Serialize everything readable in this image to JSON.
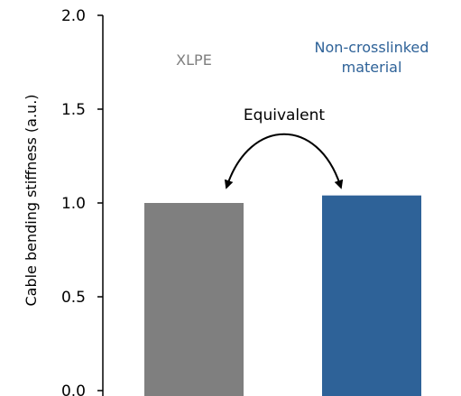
{
  "chart_data": {
    "type": "bar",
    "ylabel": "Cable bending stiffness (a.u.)",
    "ylim": [
      0,
      2
    ],
    "yticks": [
      "0.0",
      "0.5",
      "1.0",
      "1.5",
      "2.0"
    ],
    "grid": false,
    "categories": [
      "XLPE",
      "Non-crosslinked material"
    ],
    "category_label_lines": [
      [
        "XLPE"
      ],
      [
        "Non-crosslinked",
        "material"
      ]
    ],
    "values": [
      1.0,
      1.04
    ],
    "colors": [
      "#7f7f7f",
      "#2e6298"
    ],
    "label_colors": [
      "#7f7f7f",
      "#2e6298"
    ],
    "annotation": "Equivalent",
    "annotation_arrow": "double-headed-curved"
  }
}
